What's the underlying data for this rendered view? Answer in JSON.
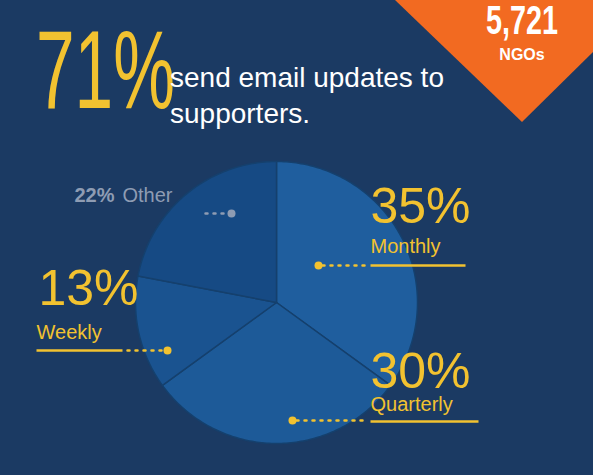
{
  "chart_data": {
    "type": "pie",
    "categories": [
      "Monthly",
      "Quarterly",
      "Weekly",
      "Other"
    ],
    "values": [
      35,
      30,
      13,
      22
    ],
    "value_labels": [
      "35%",
      "30%",
      "13%",
      "22%"
    ],
    "colors": [
      "#1f5e9e",
      "#1d5a98",
      "#1a5390",
      "#164a84"
    ],
    "data_labels": true,
    "annotations": [
      {
        "value": 71,
        "label": "71%",
        "text": "send email updates to supporters."
      },
      {
        "value": 5721,
        "label": "5,721",
        "text": "NGOs"
      }
    ]
  }
}
